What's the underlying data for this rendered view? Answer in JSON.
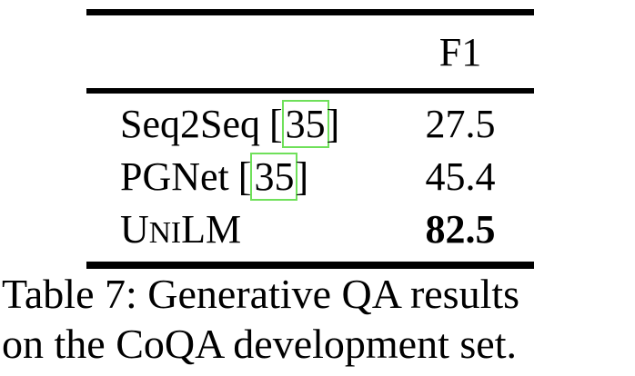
{
  "table": {
    "header": {
      "f1_label": "F1"
    },
    "cite_open": "[",
    "cite_close": "]",
    "rows": [
      {
        "name": "Seq2Seq",
        "citation": "35",
        "value": "27.5"
      },
      {
        "name": "PGNet",
        "citation": "35",
        "value": "45.4"
      },
      {
        "name_parts": {
          "a": "U",
          "b": "NI",
          "c": "LM"
        },
        "value": "82.5"
      }
    ],
    "caption_line1": "Table 7: Generative QA results",
    "caption_line2": "on the CoQA development set."
  },
  "colors": {
    "text": "#000000",
    "rule": "#000000",
    "citation_box": "#6fe05a"
  }
}
